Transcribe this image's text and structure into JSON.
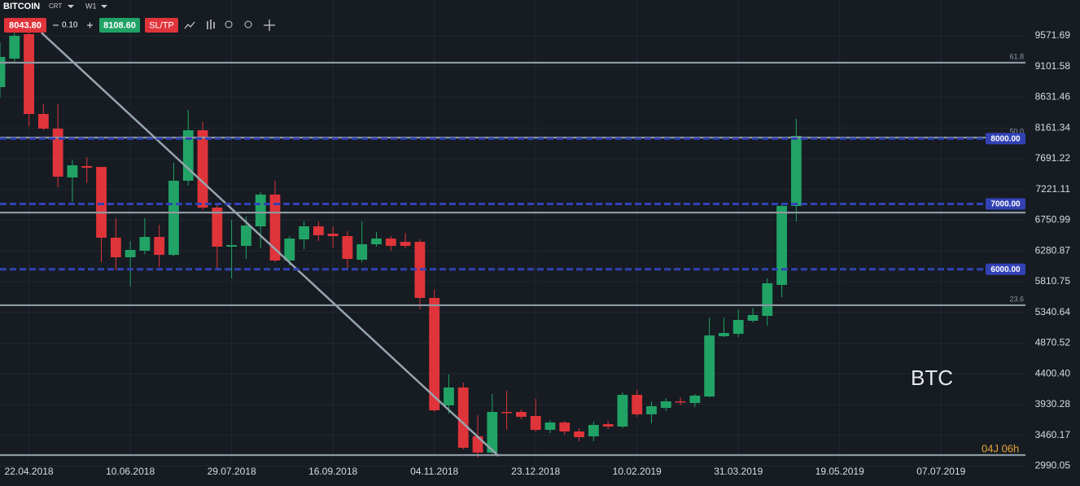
{
  "toolbar": {
    "symbol": "BITCOIN",
    "chart_type": "CRT",
    "timeframe": "W1",
    "sell": "8043.80",
    "lot": "0.10",
    "buy": "8108.60",
    "sltp": "SL/TP"
  },
  "chart_data": {
    "type": "candlestick",
    "watermark": "BTC",
    "timer": "04J 06h",
    "colors": {
      "up": "#21a366",
      "down": "#e0343b",
      "fib": "#8d99a2",
      "level": "#3242b5",
      "trend": "#98a5ae"
    },
    "xlim": [
      "08.04.2018",
      "18.08.2019"
    ],
    "ylim": [
      2958.8,
      10119.6
    ],
    "grid": true,
    "xticks": [
      "22.04.2018",
      "10.06.2018",
      "29.07.2018",
      "16.09.2018",
      "04.11.2018",
      "23.12.2018",
      "10.02.2019",
      "31.03.2019",
      "19.05.2019",
      "07.07.2019"
    ],
    "yticks": [
      9571.69,
      9101.58,
      8631.46,
      8161.34,
      7691.22,
      7221.11,
      6750.99,
      6280.87,
      5810.75,
      5340.64,
      4870.52,
      {
        "value": 4400.4,
        "label": "4400.40"
      },
      3930.28,
      3460.17,
      2990.05
    ],
    "x": [
      "08.04.2018",
      "15.04.2018",
      "22.04.2018",
      "29.04.2018",
      "06.05.2018",
      "13.05.2018",
      "20.05.2018",
      "27.05.2018",
      "03.06.2018",
      "10.06.2018",
      "17.06.2018",
      "24.06.2018",
      "01.07.2018",
      "08.07.2018",
      "15.07.2018",
      "22.07.2018",
      "29.07.2018",
      "05.08.2018",
      "12.08.2018",
      "19.08.2018",
      "26.08.2018",
      "02.09.2018",
      "09.09.2018",
      "16.09.2018",
      "23.09.2018",
      "30.09.2018",
      "07.10.2018",
      "14.10.2018",
      "21.10.2018",
      "28.10.2018",
      "04.11.2018",
      "11.11.2018",
      "18.11.2018",
      "25.11.2018",
      "02.12.2018",
      "09.12.2018",
      "16.12.2018",
      "23.12.2018",
      "30.12.2018",
      "06.01.2019",
      "13.01.2019",
      "20.01.2019",
      "27.01.2019",
      "03.02.2019",
      "10.02.2019",
      "17.02.2019",
      "24.02.2019",
      "03.03.2019",
      "10.03.2019",
      "17.03.2019",
      "24.03.2019",
      "31.03.2019",
      "07.04.2019",
      "14.04.2019",
      "21.04.2019",
      "28.04.2019"
    ],
    "open": [
      8787,
      9223,
      9597,
      8376,
      8152,
      7405,
      7579,
      7566,
      6483,
      6184,
      6284,
      6495,
      6221,
      7355,
      8127,
      6944,
      6346,
      6358,
      6657,
      7143,
      6134,
      6458,
      6657,
      6545,
      6508,
      6147,
      6383,
      6470,
      6420,
      6420,
      5562,
      3918,
      4192,
      3445,
      3196,
      3818,
      3818,
      3756,
      3544,
      3656,
      3519,
      3445,
      3631,
      3594,
      4079,
      3781,
      3880,
      3980,
      3955,
      4054,
      4976,
      5013,
      5213,
      5288,
      5761,
      6969
    ],
    "high": [
      9472,
      9621,
      9646,
      8526,
      8526,
      7679,
      7716,
      7566,
      6782,
      6433,
      6782,
      6682,
      7629,
      8438,
      8252,
      7006,
      6757,
      6807,
      7181,
      7355,
      6508,
      6732,
      6732,
      6657,
      6582,
      6732,
      6570,
      6508,
      6557,
      6458,
      5686,
      4391,
      4267,
      3768,
      4092,
      4142,
      3855,
      4017,
      3693,
      3681,
      3569,
      3668,
      3681,
      4117,
      4154,
      3980,
      4030,
      4042,
      4092,
      5263,
      5263,
      5387,
      5412,
      5860,
      7006,
      8301
    ],
    "low": [
      8625,
      9148,
      8189,
      8127,
      7255,
      7031,
      7317,
      6109,
      5985,
      5736,
      6234,
      6035,
      6196,
      7280,
      6907,
      5985,
      5860,
      6159,
      6321,
      6109,
      6060,
      6309,
      6433,
      6333,
      6010,
      6109,
      6346,
      6284,
      6321,
      5387,
      3818,
      3793,
      3245,
      3121,
      3171,
      3544,
      3706,
      3519,
      3494,
      3469,
      3370,
      3370,
      3557,
      3569,
      3743,
      3644,
      3831,
      3918,
      3893,
      4042,
      4963,
      4963,
      5188,
      5138,
      5574,
      6732
    ],
    "close": [
      9248,
      9572,
      8376,
      8152,
      7417,
      7591,
      7554,
      6483,
      6184,
      6296,
      6495,
      6221,
      7355,
      8127,
      6944,
      6346,
      6371,
      6670,
      7143,
      6134,
      6470,
      6657,
      6520,
      6508,
      6159,
      6383,
      6470,
      6358,
      6358,
      5562,
      3843,
      4192,
      3270,
      3196,
      3818,
      3806,
      3743,
      3544,
      3656,
      3519,
      3432,
      3619,
      3594,
      4079,
      3781,
      3905,
      3980,
      3967,
      4067,
      4988,
      5026,
      5225,
      5300,
      5786,
      6969,
      8040
    ],
    "fib_levels": [
      {
        "value": 9161,
        "label": "61.8"
      },
      {
        "value": 8015,
        "label": "50.0"
      },
      {
        "value": 6868
      },
      {
        "value": 5450,
        "label": "23.6"
      },
      {
        "value": 3158
      }
    ],
    "price_levels": {
      "values": [
        8000,
        7000,
        6000
      ],
      "value_labels": [
        "8000.00",
        "7000.00",
        "6000.00"
      ]
    },
    "trend_line": [
      {
        "x": "28.04.2018",
        "y": 9621
      },
      {
        "x": "05.12.2018",
        "y": 3145
      }
    ]
  }
}
